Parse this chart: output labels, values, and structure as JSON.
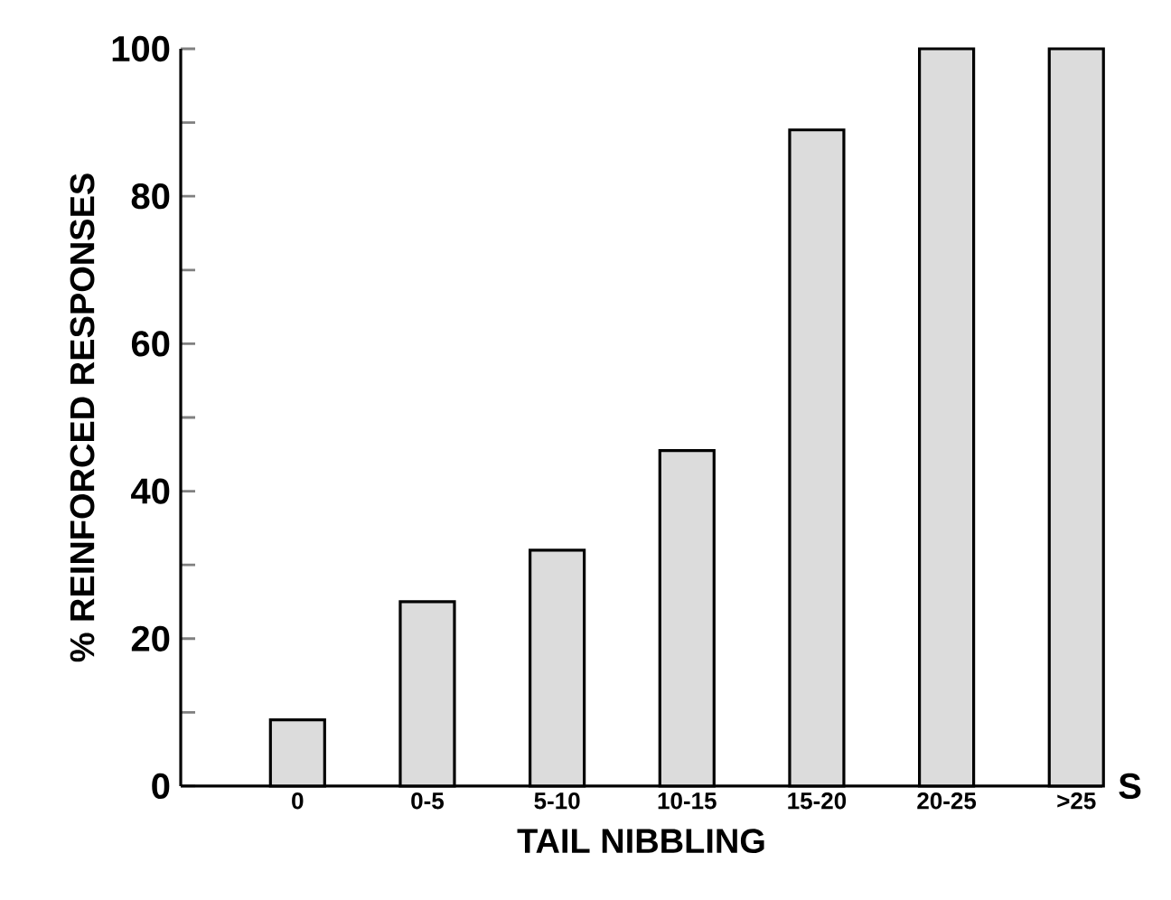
{
  "chart_data": {
    "type": "bar",
    "xlabel": "TAIL NIBBLING",
    "ylabel": "% REINFORCED RESPONSES",
    "categories": [
      "0",
      "0-5",
      "5-10",
      "10-15",
      "15-20",
      "20-25",
      ">25"
    ],
    "values": [
      9,
      25,
      32,
      45.5,
      89,
      100,
      100
    ],
    "color": "#dcdcdc",
    "ylim": [
      0,
      100
    ],
    "yticks": [
      0,
      {
        "value": 10,
        "label": null
      },
      20,
      {
        "value": 30,
        "label": null
      },
      40,
      {
        "value": 50,
        "label": null
      },
      60,
      {
        "value": 70,
        "label": null
      },
      80,
      {
        "value": 90,
        "label": null
      },
      100
    ],
    "annotations": [
      "S"
    ],
    "grid": false
  }
}
